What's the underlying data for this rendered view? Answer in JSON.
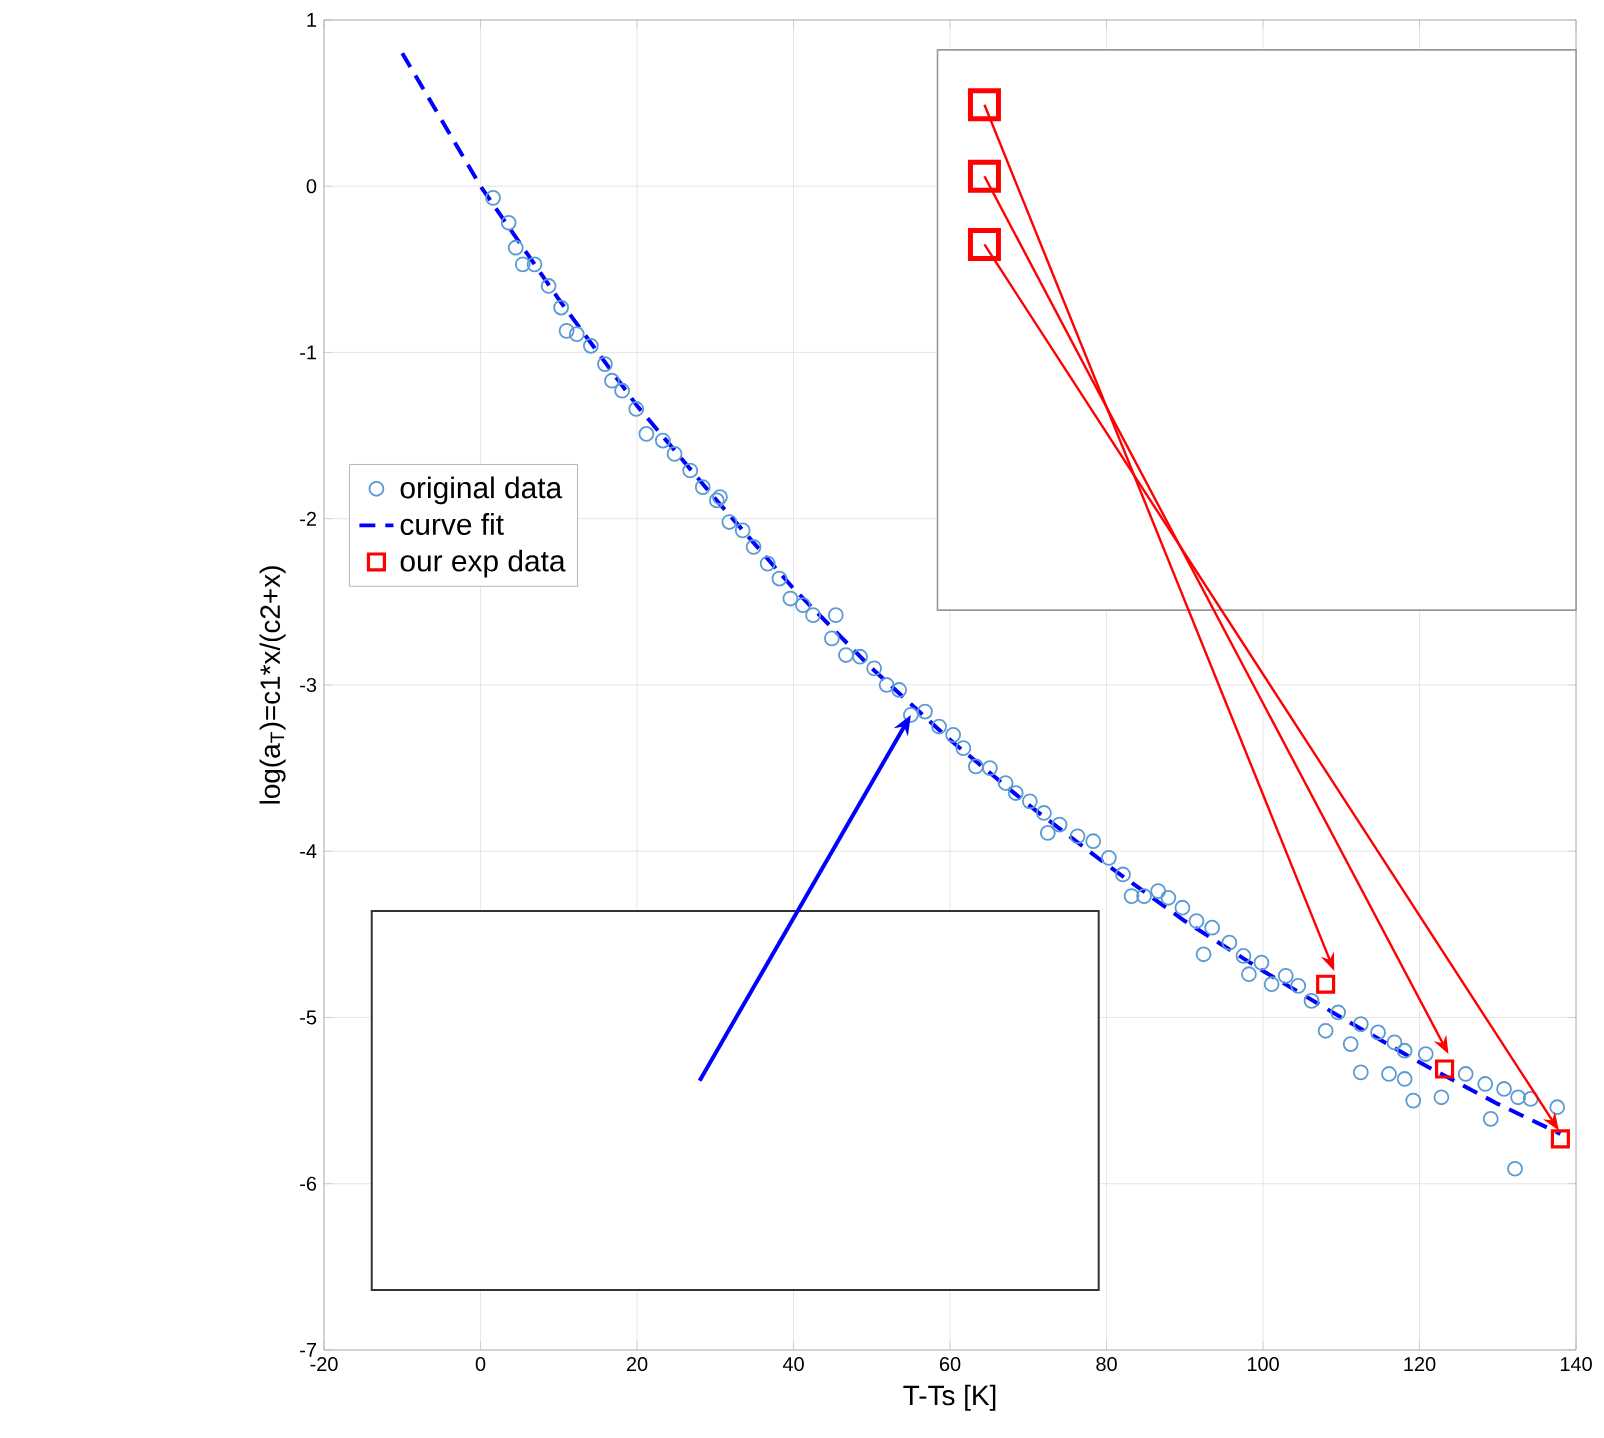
{
  "chart_data": {
    "type": "scatter",
    "xlabel": "T-Ts [K]",
    "ylabel": "log(a$_{T}$)=c1*x/(c2+x)",
    "xlim": [
      -20,
      140
    ],
    "ylim": [
      -7,
      1
    ],
    "xticks": [
      -20,
      0,
      20,
      40,
      60,
      80,
      100,
      120,
      140
    ],
    "yticks": [
      -7,
      -6,
      -5,
      -4,
      -3,
      -2,
      -1,
      0,
      1
    ],
    "grid": true,
    "legend": "left",
    "series": [
      {
        "name": "original data",
        "marker": "circle",
        "color": "#5b9bd5",
        "x": [
          1.6,
          3.6,
          4.5,
          5.4,
          6.9,
          8.7,
          10.3,
          11,
          12.3,
          14.1,
          15.9,
          16.8,
          18.1,
          19.9,
          21.2,
          23.3,
          24.8,
          26.8,
          28.4,
          30.6,
          30.2,
          31.8,
          33.5,
          34.9,
          36.7,
          38.2,
          39.6,
          41.2,
          42.5,
          45.4,
          44.9,
          46.7,
          48.5,
          50.3,
          51.9,
          53.5,
          55,
          56.8,
          58.6,
          60.4,
          61.7,
          63.3,
          65.1,
          67.1,
          68.4,
          70.2,
          72,
          74,
          72.5,
          76.3,
          78.3,
          80.3,
          82.1,
          83.2,
          84.8,
          86.6,
          87.9,
          89.7,
          91.5,
          93.5,
          92.4,
          95.7,
          97.5,
          99.8,
          98.2,
          101.1,
          102.9,
          104.5,
          106.2,
          109.6,
          108,
          112.5,
          111.2,
          114.7,
          116.8,
          118.1,
          112.5,
          116.1,
          118.1,
          120.8,
          119.2,
          122.8,
          125.9,
          128.4,
          130.8,
          132.6,
          134.2,
          137.6,
          129.1,
          132.2
        ],
        "values": [
          -0.07,
          -0.22,
          -0.37,
          -0.47,
          -0.47,
          -0.6,
          -0.73,
          -0.87,
          -0.89,
          -0.96,
          -1.07,
          -1.17,
          -1.23,
          -1.34,
          -1.49,
          -1.53,
          -1.61,
          -1.71,
          -1.81,
          -1.87,
          -1.89,
          -2.02,
          -2.07,
          -2.17,
          -2.27,
          -2.36,
          -2.48,
          -2.52,
          -2.58,
          -2.58,
          -2.72,
          -2.82,
          -2.83,
          -2.9,
          -3.0,
          -3.03,
          -3.18,
          -3.16,
          -3.25,
          -3.3,
          -3.38,
          -3.49,
          -3.5,
          -3.59,
          -3.65,
          -3.7,
          -3.77,
          -3.84,
          -3.89,
          -3.91,
          -3.94,
          -4.04,
          -4.14,
          -4.27,
          -4.27,
          -4.24,
          -4.28,
          -4.34,
          -4.42,
          -4.46,
          -4.62,
          -4.55,
          -4.63,
          -4.67,
          -4.74,
          -4.8,
          -4.75,
          -4.81,
          -4.9,
          -4.97,
          -5.08,
          -5.04,
          -5.16,
          -5.09,
          -5.15,
          -5.2,
          -5.33,
          -5.34,
          -5.37,
          -5.22,
          -5.5,
          -5.48,
          -5.34,
          -5.4,
          -5.43,
          -5.48,
          -5.49,
          -5.54,
          -5.61,
          -5.91
        ]
      },
      {
        "name": "curve fit",
        "type": "line",
        "line_style": "dashed",
        "color": "#0000ff",
        "x": [
          -10,
          0,
          10,
          20,
          30,
          40,
          50,
          60,
          70,
          80,
          90,
          100,
          110,
          120,
          130,
          138
        ],
        "values": [
          0.8,
          0.0,
          -0.68,
          -1.32,
          -1.88,
          -2.42,
          -2.9,
          -3.33,
          -3.72,
          -4.08,
          -4.42,
          -4.72,
          -5.0,
          -5.27,
          -5.52,
          -5.7
        ]
      },
      {
        "name": "our exp data",
        "marker": "square",
        "color": "#ff0000",
        "x": [
          108,
          123.2,
          138
        ],
        "values": [
          -4.8,
          -5.31,
          -5.73
        ]
      }
    ]
  }
}
